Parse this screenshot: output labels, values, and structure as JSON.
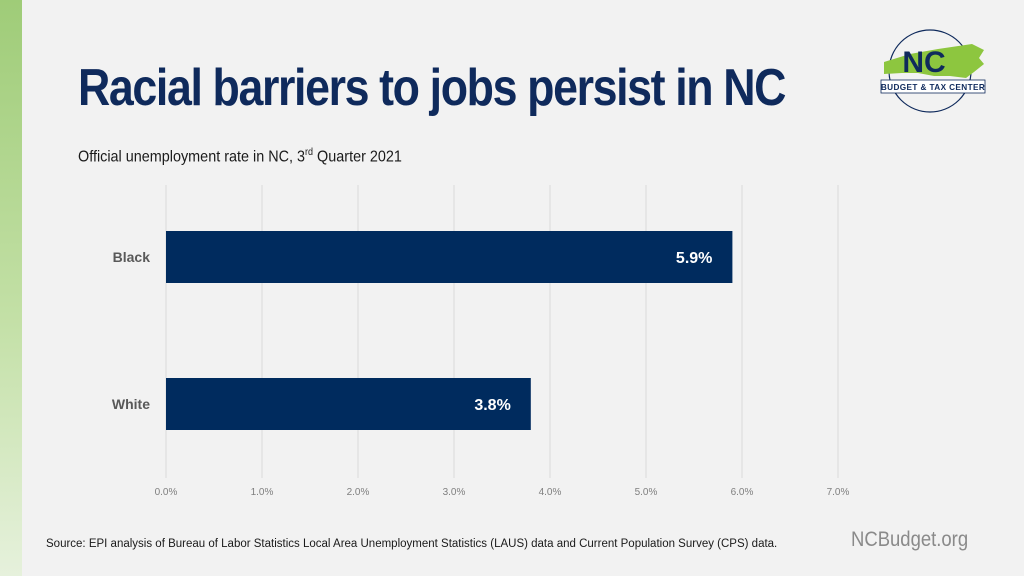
{
  "page": {
    "title": "Racial barriers to jobs persist in NC",
    "subtitle_pre": "Official unemployment rate in NC, 3",
    "subtitle_sup": "rd",
    "subtitle_post": " Quarter 2021",
    "source": "Source: EPI analysis of Bureau of Labor Statistics Local Area Unemployment Statistics (LAUS) data and Current Population Survey (CPS) data.",
    "website": "NCBudget.org"
  },
  "logo": {
    "big_text": "NC",
    "small_text": "BUDGET & TAX CENTER"
  },
  "colors": {
    "title": "#0f2a5c",
    "bar": "#002b5e",
    "accent_green": "#8dc63f",
    "grid": "#d9d9d9",
    "axis_text": "#7f7f7f",
    "category_text": "#595959"
  },
  "chart_data": {
    "type": "bar",
    "orientation": "horizontal",
    "categories": [
      "Black",
      "White"
    ],
    "values": [
      5.9,
      3.8
    ],
    "data_labels": [
      "5.9%",
      "3.8%"
    ],
    "xlim": [
      0,
      7
    ],
    "xticks": [
      0,
      1,
      2,
      3,
      4,
      5,
      6,
      7
    ],
    "xtick_labels": [
      "0.0%",
      "1.0%",
      "2.0%",
      "3.0%",
      "4.0%",
      "5.0%",
      "6.0%",
      "7.0%"
    ],
    "grid": true,
    "legend": "none"
  }
}
